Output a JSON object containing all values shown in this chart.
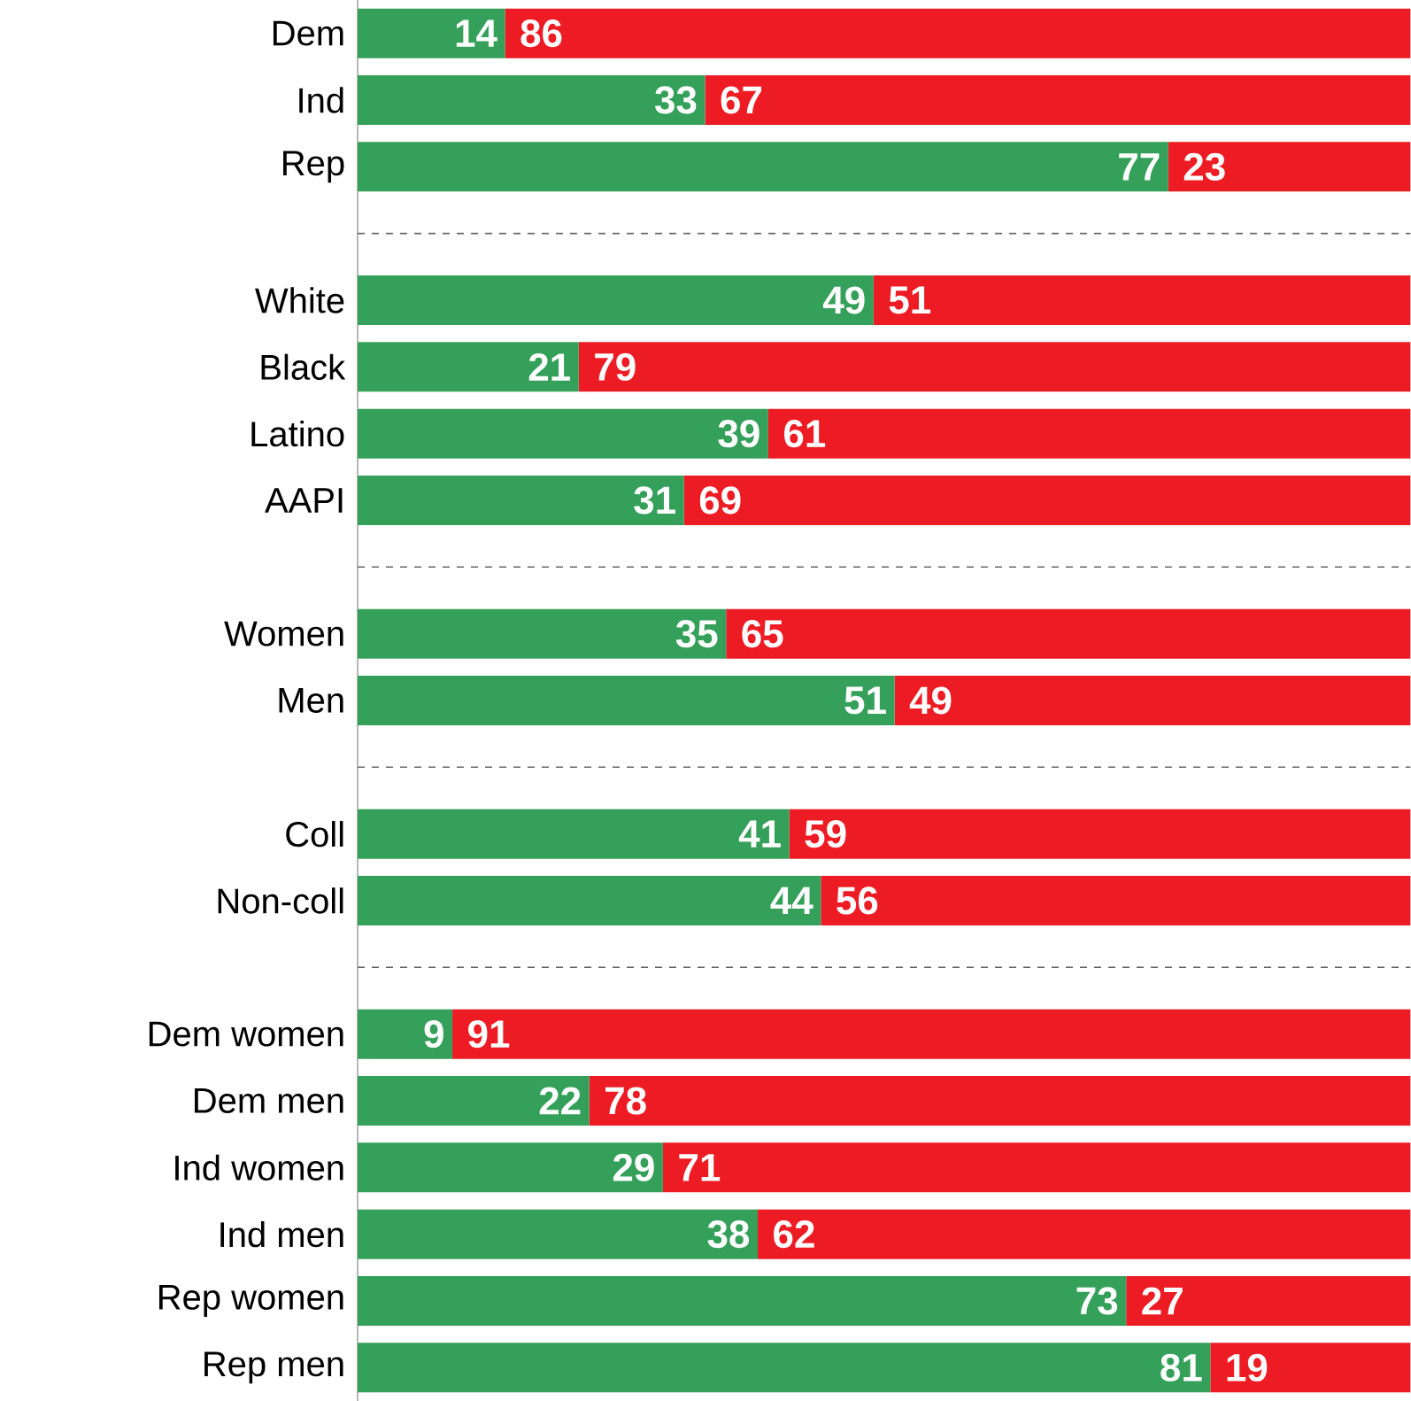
{
  "chart_data": {
    "type": "bar",
    "orientation": "horizontal",
    "stacked": true,
    "data_labels": true,
    "xlim": [
      0,
      100
    ],
    "categories": [
      "Dem",
      "Ind",
      "Rep",
      null,
      "White",
      "Black",
      "Latino",
      "AAPI",
      null,
      "Women",
      "Men",
      null,
      "Coll",
      "Non-coll",
      null,
      "Dem women",
      "Dem men",
      "Ind women",
      "Ind men",
      "Rep women",
      "Rep men"
    ],
    "series": [
      {
        "color": "#34a05a",
        "values": [
          14,
          33,
          77,
          null,
          49,
          21,
          39,
          31,
          null,
          35,
          51,
          null,
          41,
          44,
          null,
          9,
          22,
          29,
          38,
          73,
          81
        ]
      },
      {
        "color": "#ed1c24",
        "values": [
          86,
          67,
          23,
          null,
          51,
          79,
          61,
          69,
          null,
          65,
          49,
          null,
          59,
          56,
          null,
          91,
          78,
          71,
          62,
          27,
          19
        ]
      }
    ]
  }
}
